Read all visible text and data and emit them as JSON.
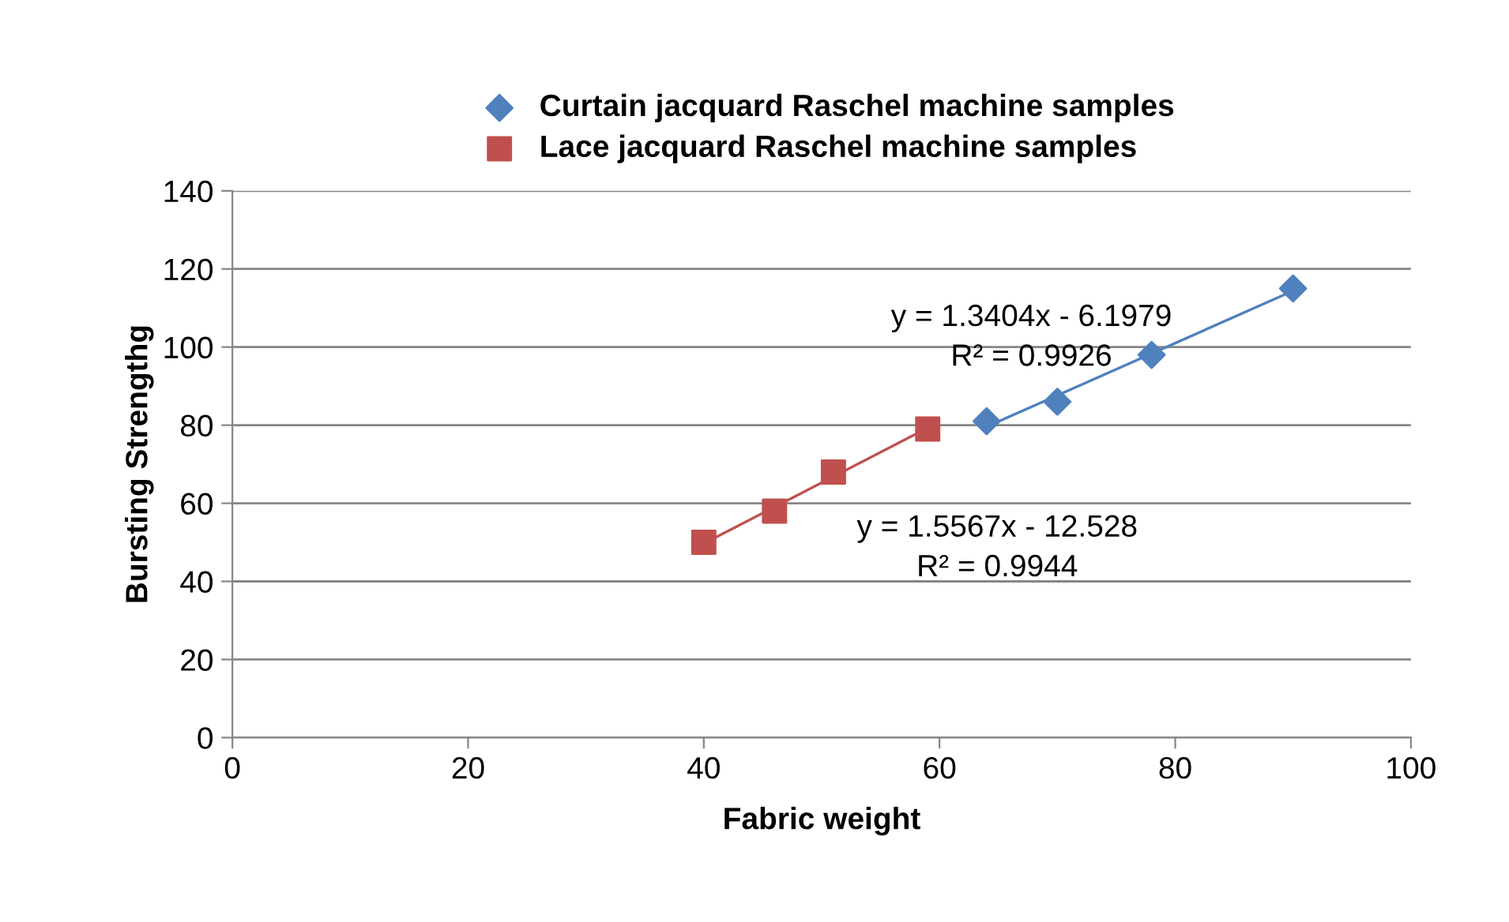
{
  "chart_data": {
    "type": "scatter",
    "xlabel": "Fabric weight",
    "ylabel": "Bursting Strengthg",
    "xlim": [
      0,
      100
    ],
    "xticks": [
      0,
      20,
      40,
      60,
      80,
      100
    ],
    "ylim": [
      0,
      140
    ],
    "yticks": [
      0,
      20,
      40,
      60,
      80,
      100,
      120,
      140
    ],
    "grid": "y",
    "legend": "top",
    "series": [
      {
        "name": "Curtain jacquard Raschel machine samples",
        "color": "#4f81bd",
        "marker": "diamond",
        "x": [
          64,
          70,
          78,
          90
        ],
        "values": [
          81,
          86,
          98,
          115
        ]
      },
      {
        "name": "Lace jacquard Raschel machine samples",
        "color": "#c0504d",
        "marker": "square",
        "x": [
          40,
          46,
          51,
          59
        ],
        "values": [
          50,
          58,
          68,
          79
        ]
      },
      {
        "type": "line",
        "color": "#4f81bd",
        "marker": "none",
        "x": [
          64,
          90
        ],
        "values": [
          79.6,
          114.4
        ]
      },
      {
        "type": "line",
        "color": "#c0504d",
        "marker": "none",
        "x": [
          40,
          59
        ],
        "values": [
          49.7,
          79.3
        ]
      }
    ],
    "annotations": [
      "y = 1.3404x - 6.1979\nR² = 0.9926",
      "y = 1.5567x - 12.528\nR² = 0.9944"
    ]
  }
}
